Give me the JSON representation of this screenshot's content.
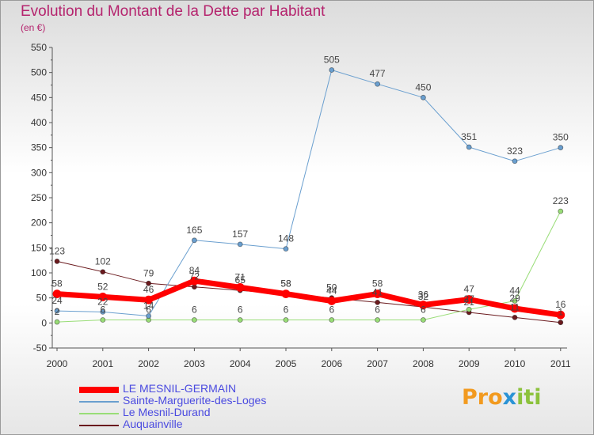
{
  "header": {
    "title": "Evolution du Montant de la Dette par Habitant",
    "subtitle": "(en €)"
  },
  "logo": {
    "part1": "Pro",
    "part2": "x",
    "part3": "iti"
  },
  "colors": {
    "accent": "#b5246e",
    "legend_text": "#4a4ae0",
    "axis_text": "#333333"
  },
  "chart_data": {
    "type": "line",
    "title": "Evolution du Montant de la Dette par Habitant",
    "subtitle": "(en €)",
    "xlabel": "",
    "ylabel": "",
    "x": [
      "2000",
      "2001",
      "2002",
      "2003",
      "2004",
      "2005",
      "2006",
      "2007",
      "2008",
      "2009",
      "2010",
      "2011"
    ],
    "y_ticks": [
      -50,
      0,
      50,
      100,
      150,
      200,
      250,
      300,
      350,
      400,
      450,
      500,
      550
    ],
    "ylim": [
      -50,
      550
    ],
    "grid": false,
    "legend_position": "bottom-left",
    "series": [
      {
        "name": "Auquainville",
        "color": "#6b1a1e",
        "width": 1,
        "values": [
          123,
          102,
          79,
          72,
          65,
          58,
          50,
          41,
          32,
          21,
          11,
          1
        ],
        "labels": [
          "123",
          "102",
          "79",
          "72",
          "65",
          "58",
          "50",
          "41",
          "32",
          "21",
          "11",
          "1"
        ]
      },
      {
        "name": "Le Mesnil-Durand",
        "color": "#99dd77",
        "width": 1,
        "values": [
          2,
          6,
          6,
          6,
          6,
          6,
          6,
          6,
          6,
          27,
          44,
          223
        ],
        "labels": [
          "2",
          "6",
          "6",
          "6",
          "6",
          "6",
          "6",
          "6",
          "6",
          "27",
          "44",
          "223"
        ]
      },
      {
        "name": "Sainte-Marguerite-des-Loges",
        "color": "#6a9fcf",
        "width": 1,
        "values": [
          24,
          22,
          14,
          165,
          157,
          148,
          505,
          477,
          450,
          351,
          323,
          350
        ],
        "labels": [
          "24",
          "22",
          "14",
          "165",
          "157",
          "148",
          "505",
          "477",
          "450",
          "351",
          "323",
          "350"
        ]
      },
      {
        "name": "LE MESNIL-GERMAIN",
        "color": "#ff0000",
        "width": 7,
        "values": [
          58,
          52,
          46,
          84,
          71,
          58,
          44,
          58,
          36,
          47,
          29,
          16
        ],
        "labels": [
          "58",
          "52",
          "46",
          "84",
          "71",
          "58",
          "44",
          "58",
          "36",
          "47",
          "29",
          "16"
        ]
      }
    ]
  },
  "legend": [
    {
      "label": "LE MESNIL-GERMAIN",
      "color": "#ff0000",
      "thickness": 8
    },
    {
      "label": "Sainte-Marguerite-des-Loges",
      "color": "#6a9fcf",
      "thickness": 2
    },
    {
      "label": "Le Mesnil-Durand",
      "color": "#99dd77",
      "thickness": 2
    },
    {
      "label": "Auquainville",
      "color": "#6b1a1e",
      "thickness": 2
    }
  ]
}
